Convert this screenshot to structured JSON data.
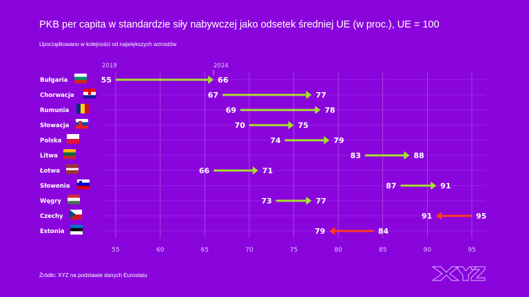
{
  "chart_data": {
    "type": "dumbbell-arrow",
    "title": "PKB per capita w standardzie siły nabywczej jako odsetek średniej UE (w proc.), UE = 100",
    "subtitle": "Uporządkowano w kolejności od największych wzrostów",
    "source": "Źródło: XYZ na podstawie danych Eurostatu",
    "series_labels": {
      "start": "2019",
      "end": "2024"
    },
    "xlim": [
      55,
      95
    ],
    "x_ticks": [
      55,
      60,
      65,
      70,
      75,
      80,
      85,
      90,
      95
    ],
    "grid": true,
    "rows": [
      {
        "country": "Bułgaria",
        "flag": "bg",
        "v2019": 55,
        "v2024": 66
      },
      {
        "country": "Chorwacja",
        "flag": "hr",
        "v2019": 67,
        "v2024": 77
      },
      {
        "country": "Rumunia",
        "flag": "ro",
        "v2019": 69,
        "v2024": 78
      },
      {
        "country": "Słowacja",
        "flag": "sk",
        "v2019": 70,
        "v2024": 75
      },
      {
        "country": "Polska",
        "flag": "pl",
        "v2019": 74,
        "v2024": 79
      },
      {
        "country": "Litwa",
        "flag": "lt",
        "v2019": 83,
        "v2024": 88
      },
      {
        "country": "Łotwa",
        "flag": "lv",
        "v2019": 66,
        "v2024": 71
      },
      {
        "country": "Słowenia",
        "flag": "si",
        "v2019": 87,
        "v2024": 91
      },
      {
        "country": "Węgry",
        "flag": "hu",
        "v2019": 73,
        "v2024": 77
      },
      {
        "country": "Czechy",
        "flag": "cz",
        "v2019": 95,
        "v2024": 91
      },
      {
        "country": "Estonia",
        "flag": "ee",
        "v2019": 84,
        "v2024": 79
      }
    ],
    "colors": {
      "increase": "#a6e22e",
      "decrease": "#ff3b1f",
      "background": "#8a05dc",
      "grid": "#b46ae8"
    }
  },
  "logo": "XYZ"
}
